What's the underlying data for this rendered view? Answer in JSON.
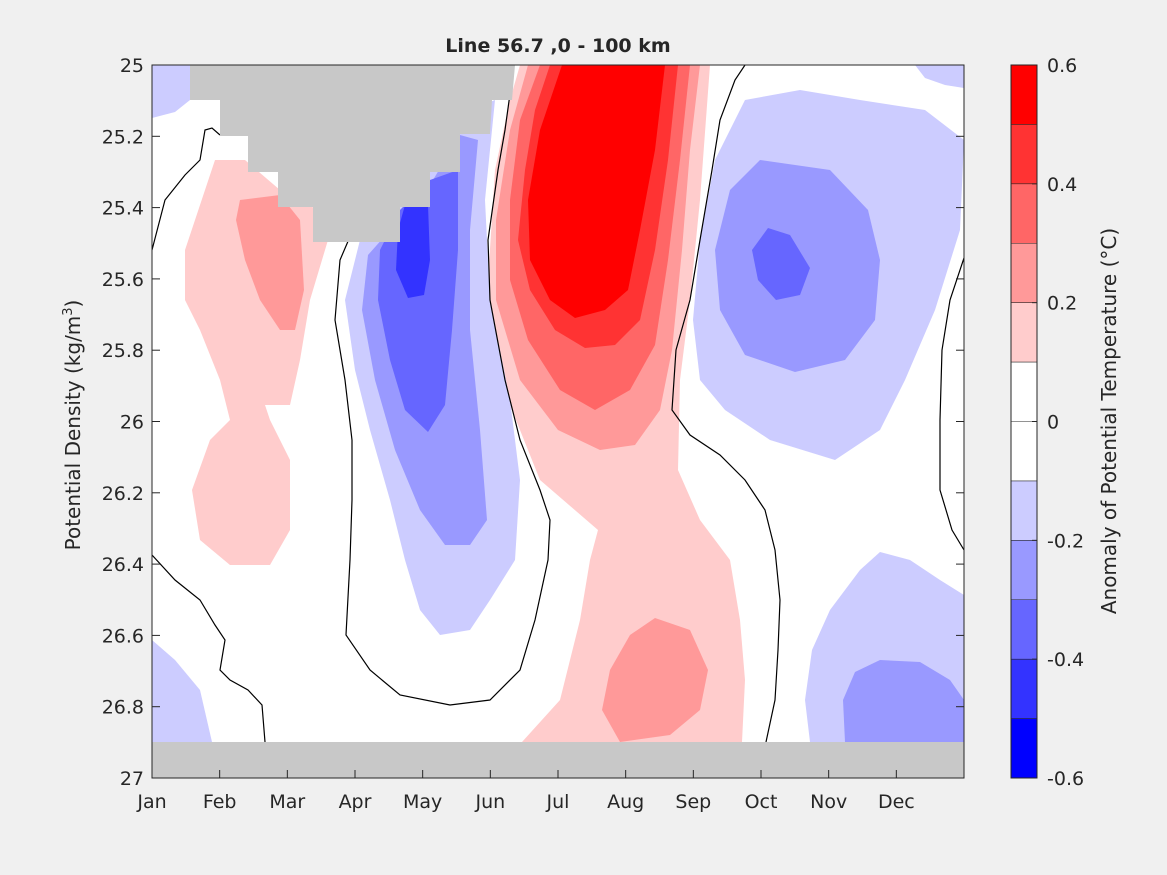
{
  "chart_data": {
    "type": "contour",
    "title": "Line 56.7 ,0 - 100 km",
    "xlabel": "",
    "ylabel_parts": [
      "Potential Density (kg/m",
      "3",
      ")"
    ],
    "ylim": [
      25,
      27
    ],
    "y_reversed": true,
    "yticks": [
      "25",
      "25.2",
      "25.4",
      "25.6",
      "25.8",
      "26",
      "26.2",
      "26.4",
      "26.6",
      "26.8",
      "27"
    ],
    "categories": [
      "Jan",
      "Feb",
      "Mar",
      "Apr",
      "May",
      "Jun",
      "Jul",
      "Aug",
      "Sep",
      "Oct",
      "Nov",
      "Dec"
    ],
    "colorbar": {
      "label": "Anomaly of Potential Temperature (°C)",
      "range": [
        -0.6,
        0.6
      ],
      "ticks": [
        "0.6",
        "0.4",
        "0.2",
        "0",
        "-0.2",
        "-0.4",
        "-0.6"
      ],
      "levels": [
        {
          "min": 0.5,
          "max": 0.6,
          "color": "#ff0000"
        },
        {
          "min": 0.4,
          "max": 0.5,
          "color": "#ff3333"
        },
        {
          "min": 0.3,
          "max": 0.4,
          "color": "#ff6666"
        },
        {
          "min": 0.2,
          "max": 0.3,
          "color": "#ff9999"
        },
        {
          "min": 0.1,
          "max": 0.2,
          "color": "#ffcccc"
        },
        {
          "min": 0.0,
          "max": 0.1,
          "color": "#ffffff"
        },
        {
          "min": -0.1,
          "max": 0.0,
          "color": "#ffffff"
        },
        {
          "min": -0.2,
          "max": -0.1,
          "color": "#ccccff"
        },
        {
          "min": -0.3,
          "max": -0.2,
          "color": "#9999ff"
        },
        {
          "min": -0.4,
          "max": -0.3,
          "color": "#6666ff"
        },
        {
          "min": -0.5,
          "max": -0.4,
          "color": "#3333ff"
        },
        {
          "min": -0.6,
          "max": -0.5,
          "color": "#0000ff"
        }
      ]
    },
    "features": [
      {
        "name": "warm-anomaly-summer",
        "peak_value": 0.6,
        "time": "Jul-Aug",
        "density_range": [
          25.0,
          26.9
        ]
      },
      {
        "name": "cold-anomaly-spring",
        "peak_value": -0.5,
        "time": "Apr-May",
        "density_range": [
          25.3,
          26.6
        ]
      },
      {
        "name": "cold-anomaly-autumn",
        "peak_value": -0.4,
        "time": "Sep-Nov",
        "density_range": [
          25.2,
          26.1
        ]
      },
      {
        "name": "warm-anomaly-winter",
        "peak_value": 0.3,
        "time": "Jan-Mar",
        "density_range": [
          25.3,
          26.4
        ]
      },
      {
        "name": "warm-anomaly-deep-summer",
        "peak_value": 0.3,
        "time": "Jul-Aug",
        "density_range": [
          26.5,
          26.9
        ]
      },
      {
        "name": "cold-anomaly-deep-december",
        "peak_value": -0.3,
        "time": "Oct-Dec",
        "density_range": [
          26.4,
          26.9
        ]
      }
    ],
    "no_data_color": "#c8c8c8",
    "zero_contour_color": "#000000"
  }
}
